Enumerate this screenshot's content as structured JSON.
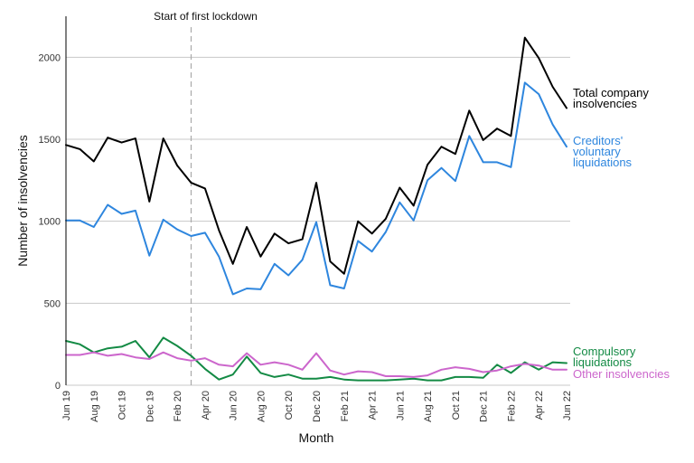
{
  "chart_data": {
    "type": "line",
    "xlabel": "Month",
    "ylabel": "Number of insolvencies",
    "ylim": [
      0,
      2250
    ],
    "yticks": [
      0,
      500,
      1000,
      1500,
      2000
    ],
    "grid": "horizontal",
    "x": [
      "Jun 19",
      "Jul 19",
      "Aug 19",
      "Sep 19",
      "Oct 19",
      "Nov 19",
      "Dec 19",
      "Jan 20",
      "Feb 20",
      "Mar 20",
      "Apr 20",
      "May 20",
      "Jun 20",
      "Jul 20",
      "Aug 20",
      "Sep 20",
      "Oct 20",
      "Nov 20",
      "Dec 20",
      "Jan 21",
      "Feb 21",
      "Mar 21",
      "Apr 21",
      "May 21",
      "Jun 21",
      "Jul 21",
      "Aug 21",
      "Sep 21",
      "Oct 21",
      "Nov 21",
      "Dec 21",
      "Jan 22",
      "Feb 22",
      "Mar 22",
      "Apr 22",
      "May 22",
      "Jun 22"
    ],
    "x_tick_labels": [
      "Jun 19",
      "Aug 19",
      "Oct 19",
      "Dec 19",
      "Feb 20",
      "Apr 20",
      "Jun 20",
      "Aug 20",
      "Oct 20",
      "Dec 20",
      "Feb 21",
      "Apr 21",
      "Jun 21",
      "Aug 21",
      "Oct 21",
      "Dec 21",
      "Feb 22",
      "Apr 22",
      "Jun 22"
    ],
    "annotation": {
      "label": "Start of first lockdown",
      "x": "Mar 20"
    },
    "series": [
      {
        "name": "Total company insolvencies",
        "label_lines": [
          "Total company",
          "insolvencies"
        ],
        "color": "#000000",
        "values": [
          1465,
          1440,
          1365,
          1510,
          1480,
          1505,
          1120,
          1505,
          1340,
          1235,
          1200,
          945,
          740,
          965,
          785,
          925,
          865,
          890,
          1235,
          755,
          680,
          1000,
          925,
          1015,
          1205,
          1095,
          1345,
          1455,
          1410,
          1675,
          1495,
          1565,
          1520,
          2120,
          1995,
          1820,
          1690
        ]
      },
      {
        "name": "Creditors' voluntary liquidations",
        "label_lines": [
          "Creditors'",
          "voluntary",
          "liquidations"
        ],
        "color": "#2e86de",
        "values": [
          1005,
          1005,
          965,
          1100,
          1045,
          1065,
          790,
          1010,
          950,
          910,
          930,
          785,
          555,
          590,
          585,
          740,
          670,
          765,
          995,
          610,
          590,
          880,
          815,
          935,
          1115,
          1005,
          1250,
          1325,
          1245,
          1520,
          1360,
          1360,
          1330,
          1845,
          1775,
          1590,
          1455
        ]
      },
      {
        "name": "Compulsory liquidations",
        "label_lines": [
          "Compulsory",
          "liquidations"
        ],
        "color": "#138a44",
        "values": [
          270,
          250,
          200,
          225,
          235,
          270,
          170,
          290,
          240,
          180,
          100,
          35,
          65,
          175,
          75,
          50,
          65,
          40,
          40,
          50,
          35,
          30,
          30,
          30,
          35,
          40,
          30,
          30,
          50,
          50,
          45,
          125,
          75,
          140,
          95,
          140,
          135
        ]
      },
      {
        "name": "Other insolvencies",
        "label_lines": [
          "Other insolvencies"
        ],
        "color": "#cc66cc",
        "values": [
          185,
          185,
          200,
          180,
          190,
          170,
          160,
          200,
          165,
          150,
          165,
          125,
          115,
          195,
          125,
          140,
          125,
          95,
          195,
          90,
          65,
          85,
          80,
          55,
          55,
          50,
          60,
          95,
          110,
          100,
          80,
          90,
          115,
          130,
          120,
          95,
          95
        ]
      }
    ]
  }
}
